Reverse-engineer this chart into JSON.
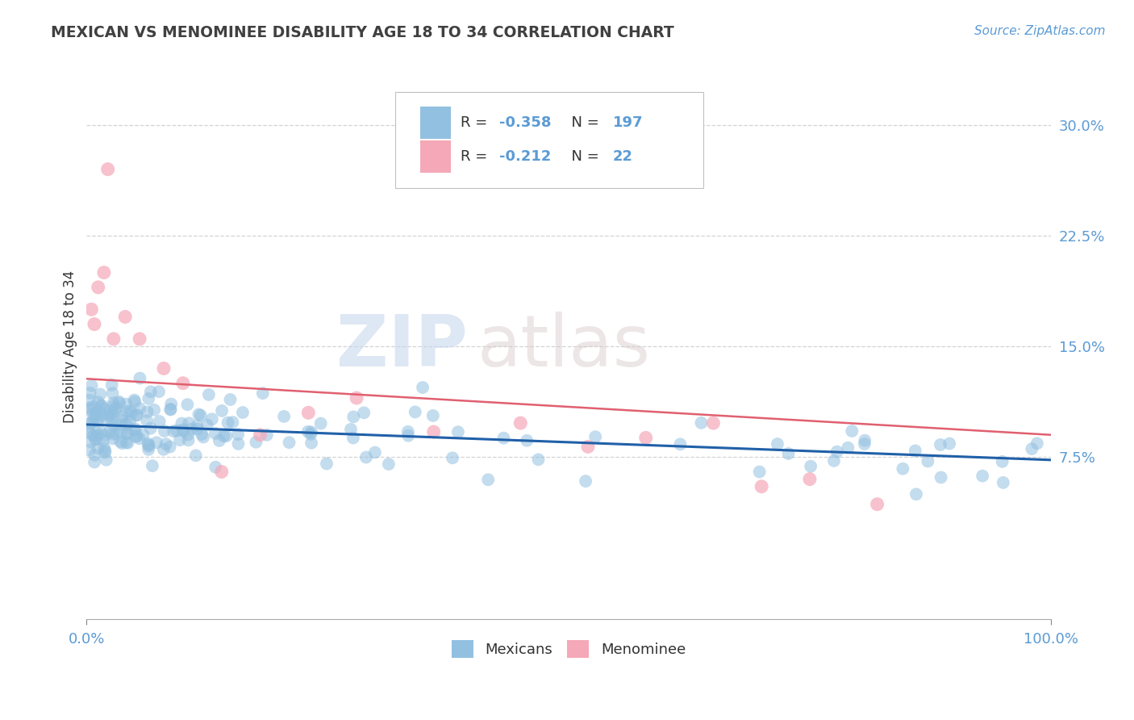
{
  "title": "MEXICAN VS MENOMINEE DISABILITY AGE 18 TO 34 CORRELATION CHART",
  "source_text": "Source: ZipAtlas.com",
  "ylabel": "Disability Age 18 to 34",
  "xlim": [
    0.0,
    1.0
  ],
  "ylim": [
    -0.035,
    0.335
  ],
  "yticks": [
    0.075,
    0.15,
    0.225,
    0.3
  ],
  "ytick_labels": [
    "7.5%",
    "15.0%",
    "22.5%",
    "30.0%"
  ],
  "xtick_labels": [
    "0.0%",
    "100.0%"
  ],
  "grid_color": "#c8c8c8",
  "background_color": "#ffffff",
  "title_color": "#404040",
  "axis_color": "#5b9bd5",
  "watermark_zip": "ZIP",
  "watermark_atlas": "atlas",
  "legend_R1": "-0.358",
  "legend_N1": "197",
  "legend_R2": "-0.212",
  "legend_N2": "22",
  "blue_color": "#92c0e0",
  "pink_color": "#f4a8b8",
  "blue_line_color": "#2060a8",
  "pink_line_color": "#e06070",
  "blue_line_y0": 0.097,
  "blue_line_y1": 0.073,
  "pink_line_y0": 0.128,
  "pink_line_y1": 0.09
}
